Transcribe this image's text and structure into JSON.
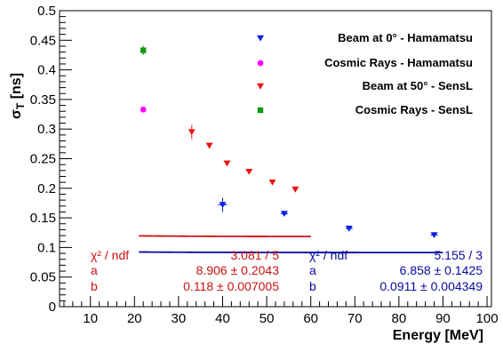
{
  "chart_data": {
    "type": "scatter",
    "xlabel": "Energy [MeV]",
    "ylabel_main": "σ",
    "ylabel_sub": "T",
    "ylabel_unit": " [ns]",
    "xlim": [
      3,
      101
    ],
    "ylim": [
      0,
      0.5
    ],
    "x_ticks": [
      10,
      20,
      30,
      40,
      50,
      60,
      70,
      80,
      90,
      100
    ],
    "y_ticks": [
      0,
      0.05,
      0.1,
      0.15,
      0.2,
      0.25,
      0.3,
      0.35,
      0.4,
      0.45,
      0.5
    ],
    "x_tick_labels": [
      "10",
      "20",
      "30",
      "40",
      "50",
      "60",
      "70",
      "80",
      "90",
      "100"
    ],
    "y_tick_labels": [
      "0",
      "0.05",
      "0.1",
      "0.15",
      "0.2",
      "0.25",
      "0.3",
      "0.35",
      "0.4",
      "0.45",
      "0.5"
    ],
    "series": [
      {
        "name": "Beam at 0° - Hamamatsu",
        "marker": "triangle-down",
        "color": "#0a1ee6",
        "points": [
          {
            "x": 40.0,
            "y": 0.172,
            "xerr": 1.0,
            "yerr": 0.012
          },
          {
            "x": 54.0,
            "y": 0.157,
            "xerr": 0.8,
            "yerr": 0.003
          },
          {
            "x": 68.7,
            "y": 0.132,
            "xerr": 0.8,
            "yerr": 0.003
          },
          {
            "x": 88.0,
            "y": 0.121,
            "xerr": 0.8,
            "yerr": 0.003
          }
        ]
      },
      {
        "name": "Cosmic Rays - Hamamatsu",
        "marker": "circle",
        "color": "#ff00ff",
        "points": [
          {
            "x": 22.0,
            "y": 0.333,
            "xerr": 0,
            "yerr": 0.005
          }
        ]
      },
      {
        "name": "Beam at 50° - SensL",
        "marker": "triangle-down",
        "color": "#ee1111",
        "points": [
          {
            "x": 33.0,
            "y": 0.295,
            "xerr": 0,
            "yerr": 0.012
          },
          {
            "x": 37.0,
            "y": 0.272,
            "xerr": 0,
            "yerr": 0.004
          },
          {
            "x": 41.0,
            "y": 0.242,
            "xerr": 0,
            "yerr": 0.004
          },
          {
            "x": 46.0,
            "y": 0.228,
            "xerr": 0,
            "yerr": 0.004
          },
          {
            "x": 51.3,
            "y": 0.21,
            "xerr": 0,
            "yerr": 0.004
          },
          {
            "x": 56.5,
            "y": 0.198,
            "xerr": 0,
            "yerr": 0.004
          }
        ]
      },
      {
        "name": "Cosmic Rays - SensL",
        "marker": "square",
        "color": "#119911",
        "points": [
          {
            "x": 22.0,
            "y": 0.433,
            "xerr": 0,
            "yerr": 0.008
          }
        ]
      }
    ],
    "fits": [
      {
        "color": "#cc1111",
        "x_range": [
          21,
          60
        ],
        "a": 8.906,
        "b": 0.118,
        "rows": [
          {
            "label": "χ² / ndf",
            "value": "3.081 / 5"
          },
          {
            "label": "a",
            "value": "8.906 ± 0.2043"
          },
          {
            "label": "b",
            "value": "0.118 ± 0.007005"
          }
        ]
      },
      {
        "color": "#0a0aa0",
        "x_range": [
          21,
          90
        ],
        "a": 6.858,
        "b": 0.0911,
        "rows": [
          {
            "label": "χ² / ndf",
            "value": "5.155 / 3"
          },
          {
            "label": "a",
            "value": "6.858 ± 0.1425"
          },
          {
            "label": "b",
            "value": "0.0911 ± 0.004349"
          }
        ]
      }
    ],
    "legend_position": "top-right",
    "grid": false
  }
}
